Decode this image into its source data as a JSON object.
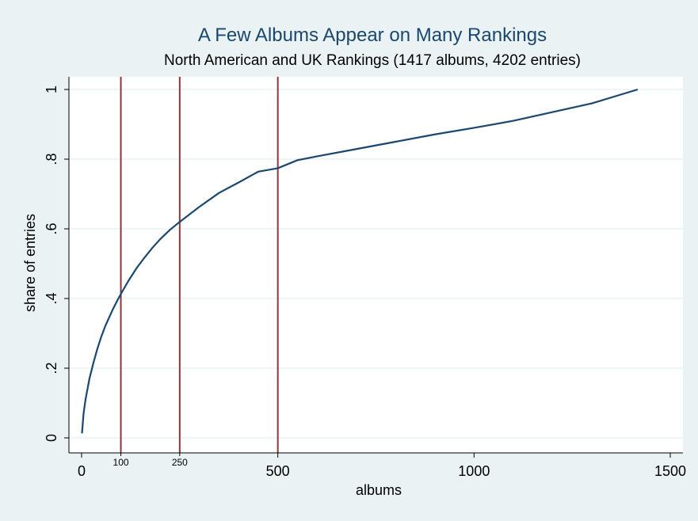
{
  "chart_data": {
    "type": "line",
    "title": "A Few Albums Appear on Many Rankings",
    "subtitle": "North American and UK Rankings (1417 albums, 4202 entries)",
    "xlabel": "albums",
    "ylabel": "share of entries",
    "xlim": [
      0,
      1500
    ],
    "ylim": [
      0,
      1
    ],
    "x_ticks": [
      {
        "value": 0,
        "label": "0"
      },
      {
        "value": 500,
        "label": "500"
      },
      {
        "value": 1000,
        "label": "1000"
      },
      {
        "value": 1500,
        "label": "1500"
      }
    ],
    "x_ticks_minor": [
      {
        "value": 100,
        "label": "100"
      },
      {
        "value": 250,
        "label": "250"
      }
    ],
    "y_ticks": [
      {
        "value": 0,
        "label": "0"
      },
      {
        "value": 0.2,
        "label": ".2"
      },
      {
        "value": 0.4,
        "label": ".4"
      },
      {
        "value": 0.6,
        "label": ".6"
      },
      {
        "value": 0.8,
        "label": ".8"
      },
      {
        "value": 1,
        "label": "1"
      }
    ],
    "grid": true,
    "reference_lines_x": [
      100,
      250,
      500
    ],
    "colors": {
      "line": "#1a476f",
      "reference": "#90353b",
      "grid": "#eaf2f3",
      "plot_bg": "#ffffff",
      "page_bg": "#eaf2f3",
      "title": "#1a476f"
    },
    "series": [
      {
        "x": [
          1,
          5,
          10,
          15,
          20,
          30,
          40,
          50,
          60,
          70,
          80,
          90,
          100,
          120,
          140,
          160,
          180,
          200,
          225,
          250,
          300,
          350,
          400,
          450,
          500,
          550,
          600,
          700,
          800,
          900,
          1000,
          1100,
          1200,
          1300,
          1417
        ],
        "y": [
          0.013,
          0.07,
          0.11,
          0.14,
          0.17,
          0.215,
          0.255,
          0.29,
          0.32,
          0.345,
          0.37,
          0.392,
          0.413,
          0.452,
          0.487,
          0.517,
          0.545,
          0.57,
          0.597,
          0.62,
          0.663,
          0.703,
          0.733,
          0.764,
          0.774,
          0.797,
          0.808,
          0.829,
          0.85,
          0.871,
          0.89,
          0.91,
          0.935,
          0.96,
          1.0
        ]
      }
    ]
  }
}
